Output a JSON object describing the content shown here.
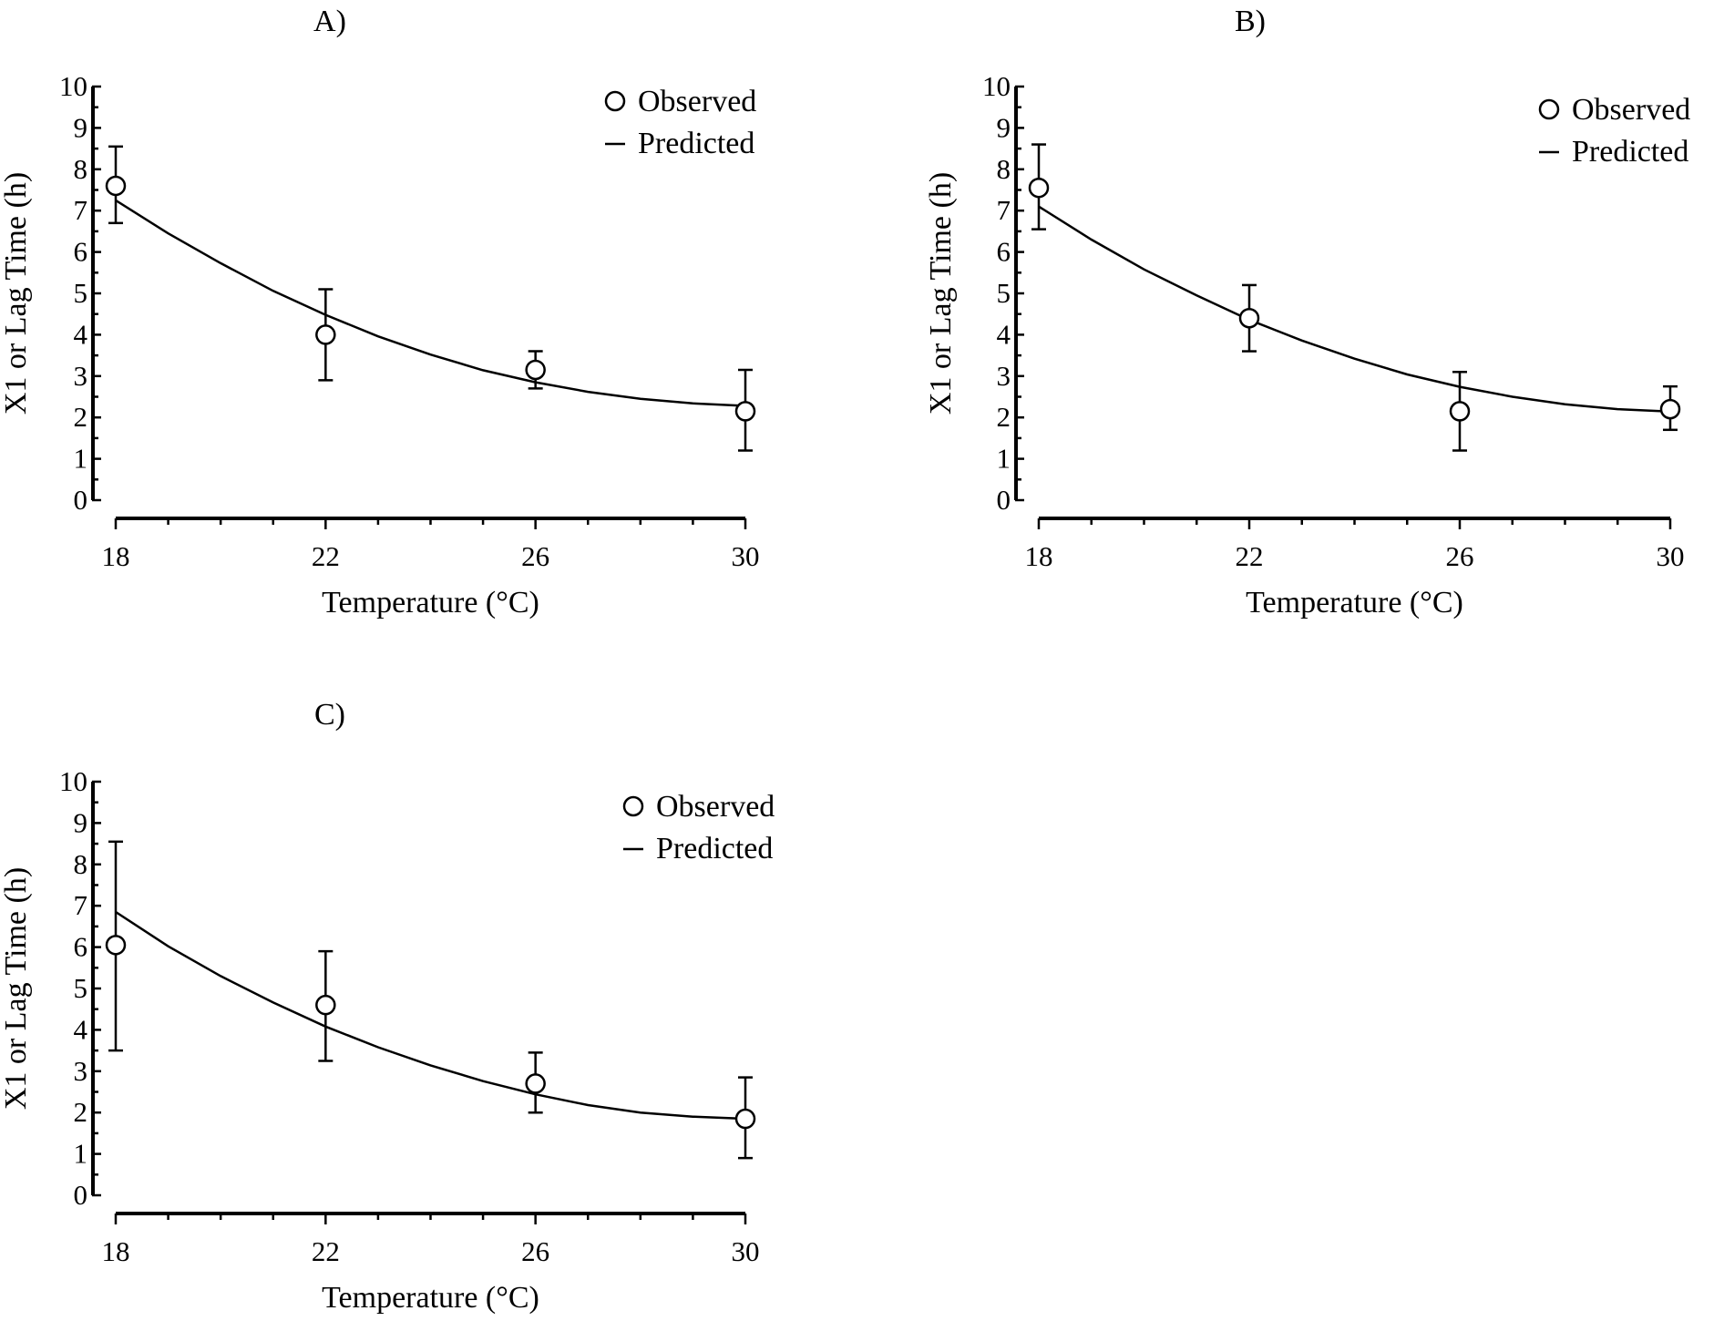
{
  "chart_data": [
    {
      "type": "scatter",
      "title": "A)",
      "xlabel": "Temperature (°C)",
      "ylabel": "X1 or Lag Time (h)",
      "xlim": [
        18,
        30
      ],
      "ylim": [
        0,
        10
      ],
      "xticks": [
        "18",
        "22",
        "26",
        "30"
      ],
      "yticks": [
        "0",
        "1",
        "2",
        "3",
        "4",
        "5",
        "6",
        "7",
        "8",
        "9",
        "10"
      ],
      "legend": [
        "Observed",
        "Predicted"
      ],
      "observed": {
        "x": [
          18,
          22,
          26,
          30
        ],
        "y": [
          7.6,
          4.0,
          3.15,
          2.15
        ],
        "err_low": [
          6.7,
          2.9,
          2.7,
          1.2
        ],
        "err_high": [
          8.55,
          5.1,
          3.6,
          3.15
        ]
      },
      "predicted": {
        "x": [
          18,
          19,
          20,
          21,
          22,
          23,
          24,
          25,
          26,
          27,
          28,
          29,
          30
        ],
        "y": [
          7.25,
          6.45,
          5.73,
          5.06,
          4.48,
          3.96,
          3.52,
          3.14,
          2.85,
          2.62,
          2.45,
          2.34,
          2.28
        ]
      }
    },
    {
      "type": "scatter",
      "title": "B)",
      "xlabel": "Temperature (°C)",
      "ylabel": "X1 or Lag Time (h)",
      "xlim": [
        18,
        30
      ],
      "ylim": [
        0,
        10
      ],
      "xticks": [
        "18",
        "22",
        "26",
        "30"
      ],
      "yticks": [
        "0",
        "1",
        "2",
        "3",
        "4",
        "5",
        "6",
        "7",
        "8",
        "9",
        "10"
      ],
      "legend": [
        "Observed",
        "Predicted"
      ],
      "observed": {
        "x": [
          18,
          22,
          26,
          30
        ],
        "y": [
          7.55,
          4.4,
          2.15,
          2.2
        ],
        "err_low": [
          6.55,
          3.6,
          1.2,
          1.7
        ],
        "err_high": [
          8.6,
          5.2,
          3.1,
          2.75
        ]
      },
      "predicted": {
        "x": [
          18,
          19,
          20,
          21,
          22,
          23,
          24,
          25,
          26,
          27,
          28,
          29,
          30
        ],
        "y": [
          7.1,
          6.3,
          5.58,
          4.95,
          4.36,
          3.86,
          3.42,
          3.04,
          2.74,
          2.5,
          2.32,
          2.2,
          2.14
        ]
      }
    },
    {
      "type": "scatter",
      "title": "C)",
      "xlabel": "Temperature (°C)",
      "ylabel": "X1 or Lag Time (h)",
      "xlim": [
        18,
        30
      ],
      "ylim": [
        0,
        10
      ],
      "xticks": [
        "18",
        "22",
        "26",
        "30"
      ],
      "yticks": [
        "0",
        "1",
        "2",
        "3",
        "4",
        "5",
        "6",
        "7",
        "8",
        "9",
        "10"
      ],
      "legend": [
        "Observed",
        "Predicted"
      ],
      "observed": {
        "x": [
          18,
          22,
          26,
          30
        ],
        "y": [
          6.05,
          4.6,
          2.7,
          1.85
        ],
        "err_low": [
          3.5,
          3.25,
          2.0,
          0.9
        ],
        "err_high": [
          8.55,
          5.9,
          3.45,
          2.85
        ]
      },
      "predicted": {
        "x": [
          18,
          19,
          20,
          21,
          22,
          23,
          24,
          25,
          26,
          27,
          28,
          29,
          30
        ],
        "y": [
          6.85,
          6.02,
          5.3,
          4.66,
          4.08,
          3.58,
          3.14,
          2.76,
          2.44,
          2.18,
          2.0,
          1.9,
          1.85
        ]
      }
    }
  ]
}
